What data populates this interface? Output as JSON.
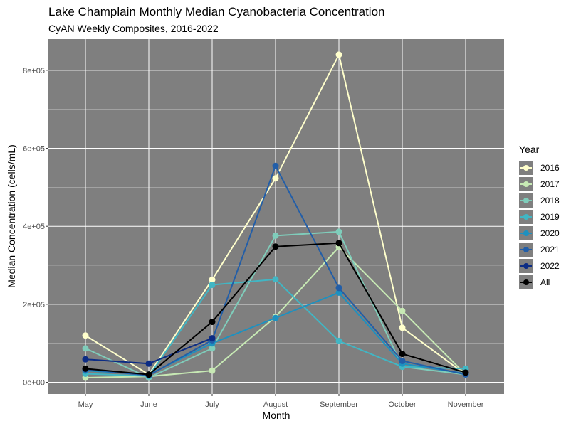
{
  "chart_data": {
    "type": "line",
    "title": "Lake Champlain Monthly Median Cyanobacteria Concentration",
    "subtitle": "CyAN Weekly Composites, 2016-2022",
    "xlabel": "Month",
    "ylabel": "Median Concentration (cells/mL)",
    "categories": [
      "May",
      "June",
      "July",
      "August",
      "September",
      "October",
      "November"
    ],
    "ylim": [
      -30000,
      880000
    ],
    "yticks": [
      0,
      200000,
      400000,
      600000,
      800000
    ],
    "ytick_labels": [
      "0e+00",
      "2e+05",
      "4e+05",
      "6e+05",
      "8e+05"
    ],
    "grid": true,
    "panel_background": "#7f7f7f",
    "legend": {
      "title": "Year",
      "position": "right"
    },
    "series": [
      {
        "name": "2016",
        "color": "#ffffcc",
        "values": [
          120000,
          20000,
          263000,
          523000,
          840000,
          140000,
          20000
        ]
      },
      {
        "name": "2017",
        "color": "#c7e9b4",
        "values": [
          12000,
          15000,
          30000,
          168000,
          347000,
          183000,
          20000
        ]
      },
      {
        "name": "2018",
        "color": "#7fcdbb",
        "values": [
          87000,
          12000,
          87000,
          376000,
          386000,
          40000,
          20000
        ]
      },
      {
        "name": "2019",
        "color": "#41b6c4",
        "values": [
          22000,
          16000,
          250000,
          264000,
          106000,
          40000,
          35000
        ]
      },
      {
        "name": "2020",
        "color": "#1d91c0",
        "values": [
          30000,
          20000,
          100000,
          165000,
          230000,
          48000,
          22000
        ]
      },
      {
        "name": "2021",
        "color": "#225ea8",
        "values": [
          33000,
          18000,
          108000,
          555000,
          242000,
          55000,
          20000
        ]
      },
      {
        "name": "2022",
        "color": "#0c2c84",
        "values": [
          59000,
          48000,
          113000,
          null,
          null,
          null,
          null
        ]
      },
      {
        "name": "All",
        "color": "#000000",
        "values": [
          35000,
          20000,
          155000,
          348000,
          357000,
          73000,
          25000
        ]
      }
    ]
  }
}
